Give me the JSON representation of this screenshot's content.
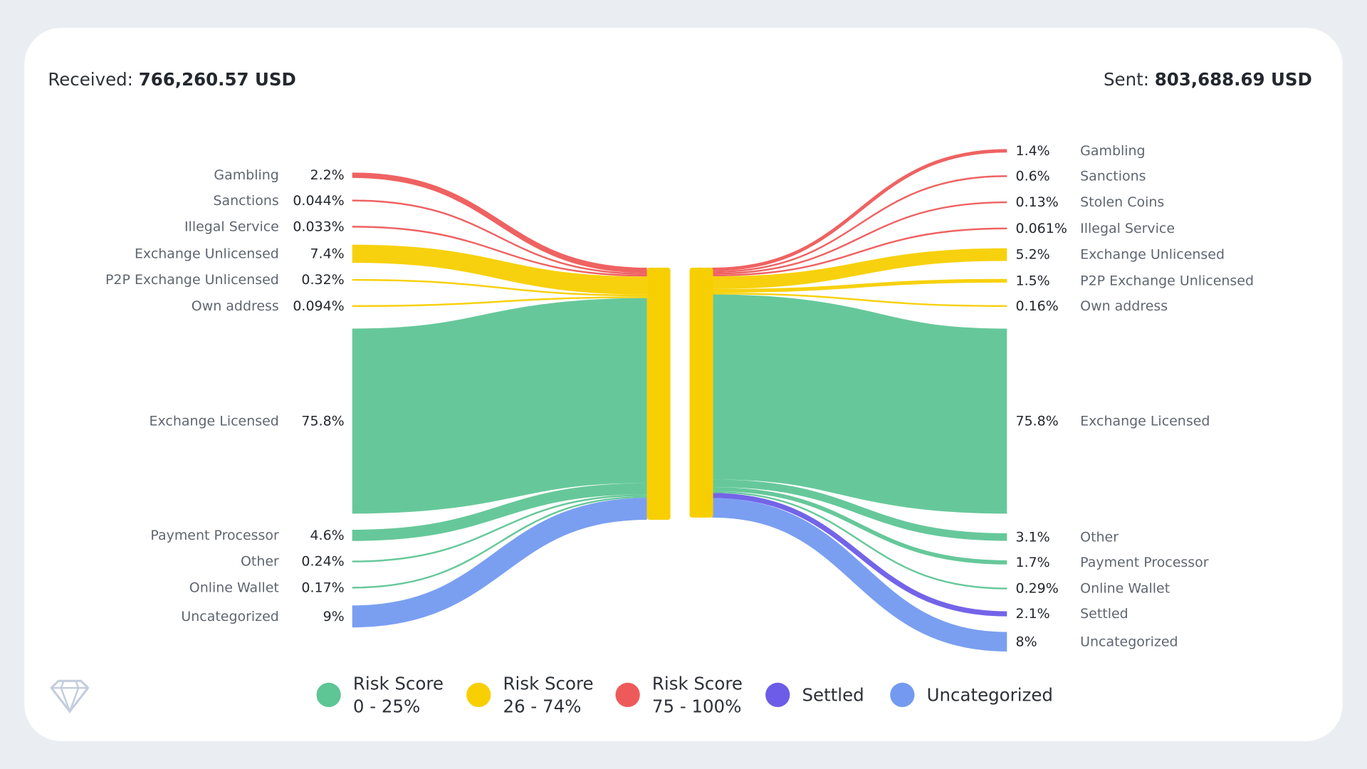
{
  "chart_data": {
    "type": "sankey",
    "received": {
      "label": "Received:",
      "value": "766,260.57 USD"
    },
    "sent": {
      "label": "Sent:",
      "value": "803,688.69 USD"
    },
    "colors": {
      "low": "#5ec595",
      "medium": "#f7cf00",
      "high": "#ee5a5a",
      "settled": "#6c5ce7",
      "uncategorized": "#739af0"
    },
    "center_node_color": "#f7cf00",
    "sources": [
      {
        "name": "Gambling",
        "pct": "2.2%",
        "value": 2.2,
        "risk": "high"
      },
      {
        "name": "Sanctions",
        "pct": "0.044%",
        "value": 0.044,
        "risk": "high"
      },
      {
        "name": "Illegal Service",
        "pct": "0.033%",
        "value": 0.033,
        "risk": "high"
      },
      {
        "name": "Exchange Unlicensed",
        "pct": "7.4%",
        "value": 7.4,
        "risk": "medium"
      },
      {
        "name": "P2P Exchange Unlicensed",
        "pct": "0.32%",
        "value": 0.32,
        "risk": "medium"
      },
      {
        "name": "Own address",
        "pct": "0.094%",
        "value": 0.094,
        "risk": "medium"
      },
      {
        "name": "Exchange Licensed",
        "pct": "75.8%",
        "value": 75.8,
        "risk": "low"
      },
      {
        "name": "Payment Processor",
        "pct": "4.6%",
        "value": 4.6,
        "risk": "low"
      },
      {
        "name": "Other",
        "pct": "0.24%",
        "value": 0.24,
        "risk": "low"
      },
      {
        "name": "Online Wallet",
        "pct": "0.17%",
        "value": 0.17,
        "risk": "low"
      },
      {
        "name": "Uncategorized",
        "pct": "9%",
        "value": 9,
        "risk": "uncategorized"
      }
    ],
    "targets": [
      {
        "name": "Gambling",
        "pct": "1.4%",
        "value": 1.4,
        "risk": "high"
      },
      {
        "name": "Sanctions",
        "pct": "0.6%",
        "value": 0.6,
        "risk": "high"
      },
      {
        "name": "Stolen Coins",
        "pct": "0.13%",
        "value": 0.13,
        "risk": "high"
      },
      {
        "name": "Illegal Service",
        "pct": "0.061%",
        "value": 0.061,
        "risk": "high"
      },
      {
        "name": "Exchange Unlicensed",
        "pct": "5.2%",
        "value": 5.2,
        "risk": "medium"
      },
      {
        "name": "P2P Exchange Unlicensed",
        "pct": "1.5%",
        "value": 1.5,
        "risk": "medium"
      },
      {
        "name": "Own address",
        "pct": "0.16%",
        "value": 0.16,
        "risk": "medium"
      },
      {
        "name": "Exchange Licensed",
        "pct": "75.8%",
        "value": 75.8,
        "risk": "low"
      },
      {
        "name": "Other",
        "pct": "3.1%",
        "value": 3.1,
        "risk": "low"
      },
      {
        "name": "Payment Processor",
        "pct": "1.7%",
        "value": 1.7,
        "risk": "low"
      },
      {
        "name": "Online Wallet",
        "pct": "0.29%",
        "value": 0.29,
        "risk": "low"
      },
      {
        "name": "Settled",
        "pct": "2.1%",
        "value": 2.1,
        "risk": "settled"
      },
      {
        "name": "Uncategorized",
        "pct": "8%",
        "value": 8,
        "risk": "uncategorized"
      }
    ],
    "legend": [
      {
        "line1": "Risk Score",
        "line2": "0 - 25%",
        "risk": "low"
      },
      {
        "line1": "Risk Score",
        "line2": "26 - 74%",
        "risk": "medium"
      },
      {
        "line1": "Risk Score",
        "line2": "75 - 100%",
        "risk": "high"
      },
      {
        "line1": "Settled",
        "line2": "",
        "risk": "settled"
      },
      {
        "line1": "Uncategorized",
        "line2": "",
        "risk": "uncategorized"
      }
    ]
  }
}
